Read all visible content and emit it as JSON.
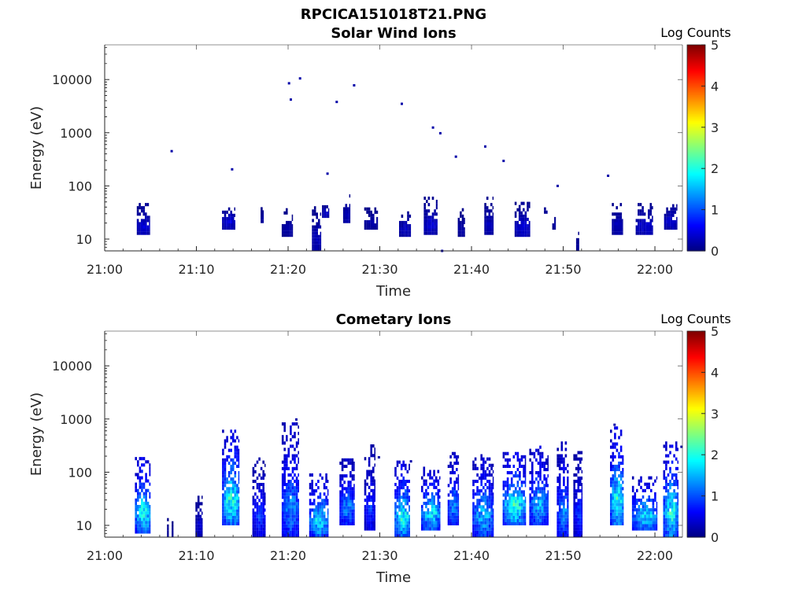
{
  "figure": {
    "title": "RPCICA151018T21.PNG"
  },
  "colors": {
    "colormap": [
      "#00007f",
      "#0000ff",
      "#007fff",
      "#00ffff",
      "#7fff7f",
      "#ffff00",
      "#ff7f00",
      "#ff0000",
      "#7f0000"
    ],
    "axis": "#262626",
    "background": "#ffffff"
  },
  "chart_data": [
    {
      "type": "heatmap",
      "title": "Solar Wind Ions",
      "xlabel": "Time",
      "ylabel": "Energy (eV)",
      "x_unit": "minutes after 21:00",
      "xlim": [
        0,
        63
      ],
      "ylim": [
        6,
        45000
      ],
      "yscale": "log",
      "xticks": [
        0,
        10,
        20,
        30,
        40,
        50,
        60
      ],
      "xtick_labels": [
        "21:00",
        "21:10",
        "21:20",
        "21:30",
        "21:40",
        "21:50",
        "22:00"
      ],
      "yticks": [
        10,
        100,
        1000,
        10000
      ],
      "ytick_labels": [
        "10",
        "100",
        "1000",
        "10000"
      ],
      "colorbar": {
        "label": "Log Counts",
        "range": [
          0,
          5
        ],
        "ticks": [
          "0",
          "1",
          "2",
          "3",
          "4",
          "5"
        ]
      },
      "clusters": [
        {
          "t0": 3.5,
          "t1": 4.9,
          "emin": 12,
          "emax": 42,
          "peak": 0.4
        },
        {
          "t0": 12.8,
          "t1": 14.2,
          "emin": 15,
          "emax": 45,
          "peak": 0.4
        },
        {
          "t0": 17.0,
          "t1": 17.3,
          "emin": 20,
          "emax": 35,
          "peak": 0.2
        },
        {
          "t0": 19.3,
          "t1": 20.5,
          "emin": 11,
          "emax": 35,
          "peak": 0.2
        },
        {
          "t0": 22.6,
          "t1": 23.6,
          "emin": 6,
          "emax": 40,
          "peak": 0.3
        },
        {
          "t0": 23.7,
          "t1": 24.4,
          "emin": 25,
          "emax": 42,
          "peak": 0.4
        },
        {
          "t0": 26.0,
          "t1": 26.7,
          "emin": 20,
          "emax": 65,
          "peak": 0.3
        },
        {
          "t0": 28.3,
          "t1": 29.8,
          "emin": 15,
          "emax": 38,
          "peak": 0.2
        },
        {
          "t0": 32.1,
          "t1": 33.4,
          "emin": 11,
          "emax": 33,
          "peak": 0.3
        },
        {
          "t0": 34.8,
          "t1": 36.3,
          "emin": 12,
          "emax": 55,
          "peak": 0.4
        },
        {
          "t0": 38.5,
          "t1": 39.3,
          "emin": 11,
          "emax": 35,
          "peak": 0.2
        },
        {
          "t0": 41.4,
          "t1": 42.3,
          "emin": 12,
          "emax": 55,
          "peak": 0.3
        },
        {
          "t0": 44.7,
          "t1": 46.4,
          "emin": 11,
          "emax": 45,
          "peak": 0.4
        },
        {
          "t0": 47.9,
          "t1": 48.3,
          "emin": 30,
          "emax": 45,
          "peak": 0.2
        },
        {
          "t0": 48.8,
          "t1": 49.2,
          "emin": 15,
          "emax": 25,
          "peak": 0.2
        },
        {
          "t0": 51.4,
          "t1": 51.7,
          "emin": 6,
          "emax": 12,
          "peak": 0.2
        },
        {
          "t0": 55.3,
          "t1": 56.5,
          "emin": 12,
          "emax": 42,
          "peak": 0.3
        },
        {
          "t0": 57.9,
          "t1": 59.8,
          "emin": 12,
          "emax": 42,
          "peak": 0.4
        },
        {
          "t0": 61.0,
          "t1": 62.4,
          "emin": 15,
          "emax": 45,
          "peak": 0.4
        }
      ],
      "scatter": [
        [
          7.3,
          450
        ],
        [
          13.9,
          205
        ],
        [
          20.1,
          8500
        ],
        [
          20.3,
          4200
        ],
        [
          21.3,
          10500
        ],
        [
          24.3,
          170
        ],
        [
          25.3,
          3800
        ],
        [
          27.2,
          7800
        ],
        [
          32.4,
          3500
        ],
        [
          35.8,
          1250
        ],
        [
          36.6,
          980
        ],
        [
          38.3,
          355
        ],
        [
          41.5,
          550
        ],
        [
          43.5,
          295
        ],
        [
          49.4,
          100
        ],
        [
          54.9,
          155
        ],
        [
          36.8,
          6
        ]
      ]
    },
    {
      "type": "heatmap",
      "title": "Cometary Ions",
      "xlabel": "Time",
      "ylabel": "Energy (eV)",
      "x_unit": "minutes after 21:00",
      "xlim": [
        0,
        63
      ],
      "ylim": [
        6,
        45000
      ],
      "yscale": "log",
      "xticks": [
        0,
        10,
        20,
        30,
        40,
        50,
        60
      ],
      "xtick_labels": [
        "21:00",
        "21:10",
        "21:20",
        "21:30",
        "21:40",
        "21:50",
        "22:00"
      ],
      "yticks": [
        10,
        100,
        1000,
        10000
      ],
      "ytick_labels": [
        "10",
        "100",
        "1000",
        "10000"
      ],
      "colorbar": {
        "label": "Log Counts",
        "range": [
          0,
          5
        ],
        "ticks": [
          "0",
          "1",
          "2",
          "3",
          "4",
          "5"
        ]
      },
      "clusters": [
        {
          "t0": 3.3,
          "t1": 5.0,
          "emin": 7,
          "emax": 180,
          "peak": 1.8
        },
        {
          "t0": 6.8,
          "t1": 7.0,
          "emin": 6,
          "emax": 12,
          "peak": 0.2
        },
        {
          "t0": 7.3,
          "t1": 7.5,
          "emin": 6,
          "emax": 12,
          "peak": 0.2
        },
        {
          "t0": 9.9,
          "t1": 10.6,
          "emin": 6,
          "emax": 35,
          "peak": 0.4
        },
        {
          "t0": 12.8,
          "t1": 14.7,
          "emin": 10,
          "emax": 600,
          "peak": 1.8
        },
        {
          "t0": 16.1,
          "t1": 17.5,
          "emin": 6,
          "emax": 180,
          "peak": 0.8
        },
        {
          "t0": 19.3,
          "t1": 21.2,
          "emin": 6,
          "emax": 800,
          "peak": 1.2
        },
        {
          "t0": 22.3,
          "t1": 24.4,
          "emin": 6,
          "emax": 90,
          "peak": 1.6
        },
        {
          "t0": 25.6,
          "t1": 27.2,
          "emin": 10,
          "emax": 170,
          "peak": 1.2
        },
        {
          "t0": 28.3,
          "t1": 29.4,
          "emin": 8,
          "emax": 300,
          "peak": 0.8
        },
        {
          "t0": 31.6,
          "t1": 33.3,
          "emin": 6,
          "emax": 150,
          "peak": 1.8
        },
        {
          "t0": 34.5,
          "t1": 36.6,
          "emin": 8,
          "emax": 120,
          "peak": 1.6
        },
        {
          "t0": 37.4,
          "t1": 38.6,
          "emin": 10,
          "emax": 220,
          "peak": 1.2
        },
        {
          "t0": 40.1,
          "t1": 42.3,
          "emin": 6,
          "emax": 200,
          "peak": 1.4
        },
        {
          "t0": 43.4,
          "t1": 45.9,
          "emin": 10,
          "emax": 230,
          "peak": 1.8
        },
        {
          "t0": 46.3,
          "t1": 48.3,
          "emin": 10,
          "emax": 280,
          "peak": 1.4
        },
        {
          "t0": 49.3,
          "t1": 50.6,
          "emin": 6,
          "emax": 350,
          "peak": 1.2
        },
        {
          "t0": 51.1,
          "t1": 52.1,
          "emin": 6,
          "emax": 250,
          "peak": 0.8
        },
        {
          "t0": 55.1,
          "t1": 56.6,
          "emin": 10,
          "emax": 650,
          "peak": 1.8
        },
        {
          "t0": 57.5,
          "t1": 60.2,
          "emin": 8,
          "emax": 80,
          "peak": 1.6
        },
        {
          "t0": 60.9,
          "t1": 62.5,
          "emin": 6,
          "emax": 350,
          "peak": 1.8
        }
      ],
      "scatter": [
        [
          20.9,
          980
        ],
        [
          29.9,
          190
        ],
        [
          33.4,
          160
        ],
        [
          55.6,
          780
        ],
        [
          62.9,
          300
        ]
      ]
    }
  ]
}
